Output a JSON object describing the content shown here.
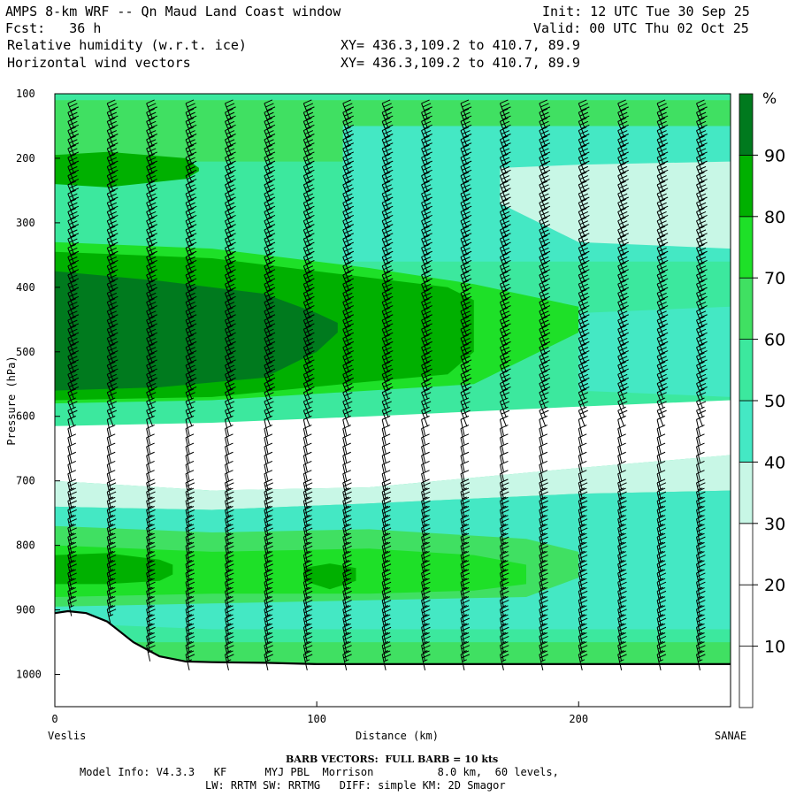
{
  "header": {
    "title": "AMPS 8-km WRF -- Qn Maud Land Coast window",
    "fcst": "Fcst:   36 h",
    "field1": "Relative humidity (w.r.t. ice)",
    "field2": "Horizontal wind vectors",
    "init": "Init: 12 UTC Tue 30 Sep 25",
    "valid": "Valid: 00 UTC Thu 02 Oct 25",
    "xy1": "XY= 436.3,109.2 to 410.7, 89.9",
    "xy2": "XY= 436.3,109.2 to 410.7, 89.9"
  },
  "footer": {
    "barb": "BARB VECTORS:  FULL BARB = 10 kts",
    "model": "Model Info: V4.3.3   KF      MYJ PBL  Morrison          8.0 km,  60 levels,",
    "physics": "LW: RRTM SW: RRTMG   DIFF: simple KM: 2D Smagor"
  },
  "colors": {
    "rh_0_30": "#ffffff",
    "rh_30_40": "#c8f7e6",
    "rh_40_50": "#44e8c4",
    "rh_50_60": "#3ce89e",
    "rh_60_70": "#40e062",
    "rh_70_80": "#1ee028",
    "rh_80_90": "#00b000",
    "rh_90_100": "#007a1e",
    "terrain_line": "#000000",
    "barb": "#000000"
  },
  "chart_data": {
    "type": "heatmap",
    "title": "Relative humidity (w.r.t. ice) cross-section with horizontal wind vectors",
    "xlabel": "Distance (km)",
    "ylabel": "Pressure (hPa)",
    "x_range": [
      0,
      258
    ],
    "y_range": [
      1050,
      100
    ],
    "x_ticks": [
      0,
      100,
      200
    ],
    "y_ticks": [
      100,
      200,
      300,
      400,
      500,
      600,
      700,
      800,
      900,
      1000
    ],
    "x_endpoint_left": "Veslis",
    "x_endpoint_right": "SANAE",
    "colorbar_unit": "%",
    "colorbar_levels": [
      0,
      10,
      20,
      30,
      40,
      50,
      60,
      70,
      80,
      90,
      100
    ],
    "colorbar_tick_labels": [
      "10",
      "20",
      "30",
      "40",
      "50",
      "60",
      "70",
      "80",
      "90"
    ],
    "surface_pressure_profile": {
      "distance_km": [
        0,
        5,
        12,
        20,
        30,
        40,
        50,
        60,
        80,
        100,
        150,
        200,
        258
      ],
      "pressure_hpa": [
        905,
        902,
        905,
        918,
        950,
        972,
        980,
        981,
        982,
        984,
        984,
        984,
        984
      ]
    },
    "rh_regions": [
      {
        "layer": "upper",
        "pressure_hpa": [
          110,
          200
        ],
        "rh_percent": "60-70"
      },
      {
        "layer": "upper-left moist core",
        "pressure_hpa": [
          200,
          240
        ],
        "distance_km": [
          0,
          50
        ],
        "rh_percent": "80-90"
      },
      {
        "layer": "upper-right dry patch",
        "pressure_hpa": [
          220,
          350
        ],
        "distance_km": [
          160,
          258
        ],
        "rh_percent": "30-40"
      },
      {
        "layer": "mid moist core",
        "pressure_hpa": [
          360,
          560
        ],
        "distance_km": [
          0,
          100
        ],
        "rh_percent": "90-100"
      },
      {
        "layer": "mid moist",
        "pressure_hpa": [
          350,
          570
        ],
        "distance_km": [
          0,
          200
        ],
        "rh_percent": "80-90"
      },
      {
        "layer": "dry layer",
        "pressure_hpa": [
          600,
          690
        ],
        "distance_km": [
          0,
          258
        ],
        "rh_percent": "0-30"
      },
      {
        "layer": "lower moist",
        "pressure_hpa": [
          780,
          880
        ],
        "distance_km": [
          0,
          200
        ],
        "rh_percent": "70-80"
      },
      {
        "layer": "lower moist core",
        "pressure_hpa": [
          820,
          860
        ],
        "distance_km": [
          0,
          40
        ],
        "rh_percent": "80-90"
      },
      {
        "layer": "lower moist core 2",
        "pressure_hpa": [
          830,
          870
        ],
        "distance_km": [
          95,
          115
        ],
        "rh_percent": "80-90"
      },
      {
        "layer": "near surface",
        "pressure_hpa": [
          880,
          980
        ],
        "distance_km": [
          0,
          258
        ],
        "rh_percent": "40-60"
      }
    ],
    "wind_barbs": {
      "columns_distance_km": [
        5,
        20,
        35,
        50,
        65,
        80,
        95,
        110,
        125,
        140,
        155,
        170,
        185,
        200,
        215,
        230,
        245
      ],
      "upper_speed_kts": 30,
      "mid_speed_kts": 20,
      "dry_layer_speed_kts": 10,
      "lower_speed_kts": 25,
      "note": "FULL BARB = 10 kts"
    }
  }
}
